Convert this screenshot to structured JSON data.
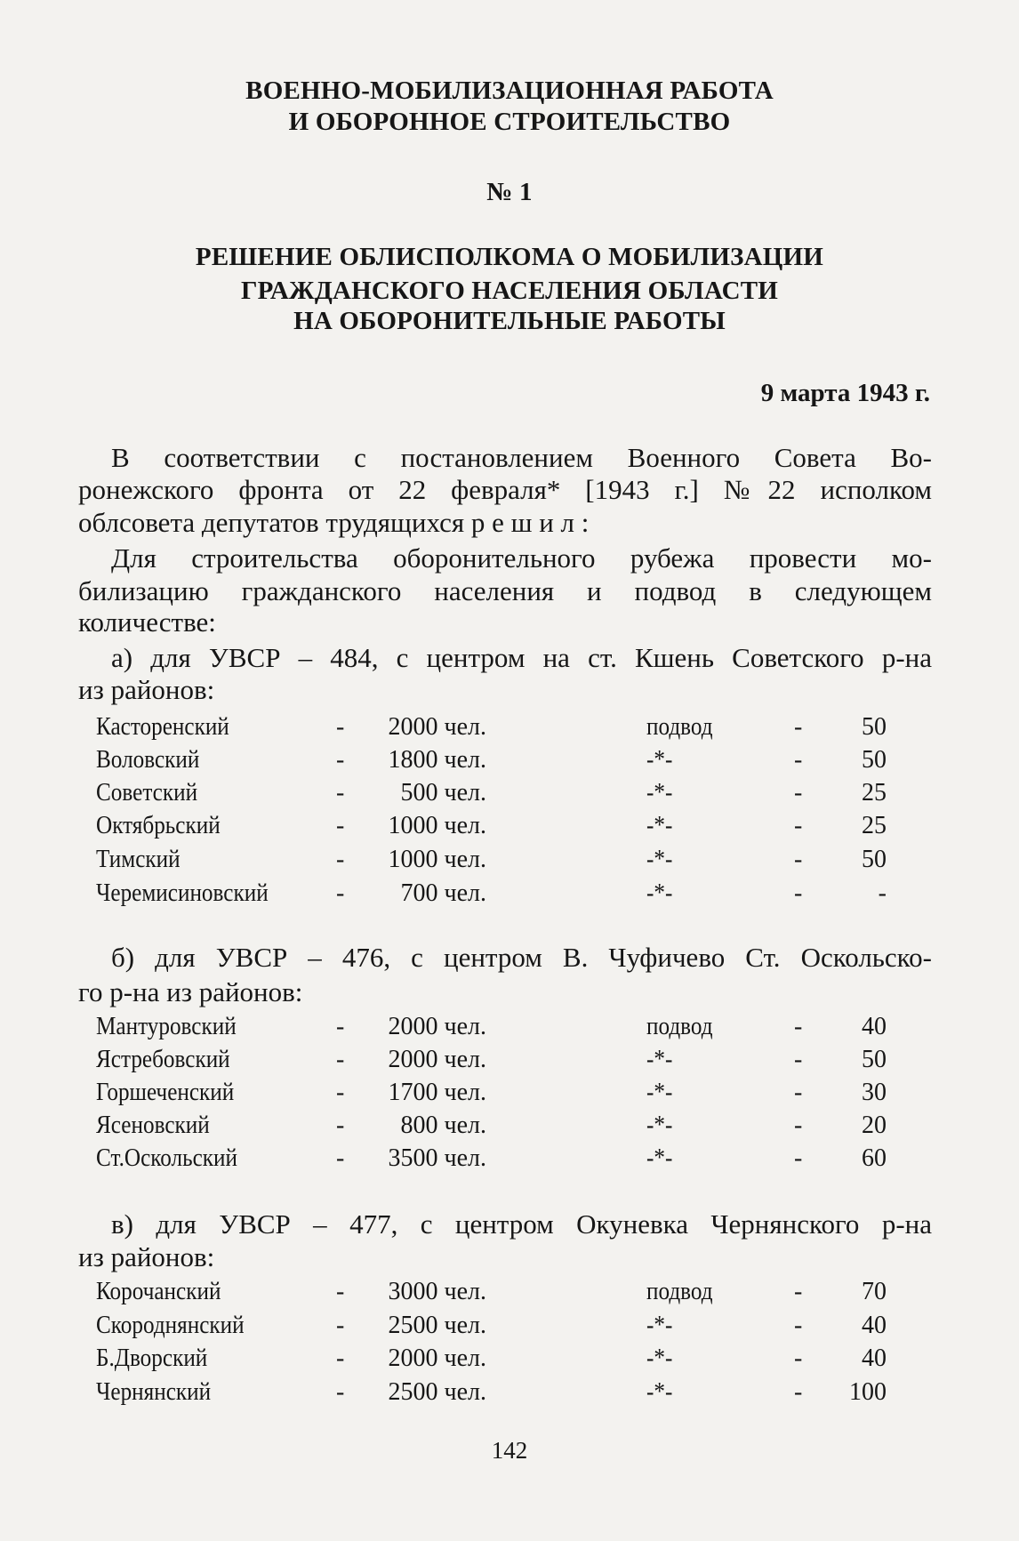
{
  "section_title": [
    "ВОЕННО-МОБИЛИЗАЦИОННАЯ РАБОТА",
    "И ОБОРОННОЕ СТРОИТЕЛЬСТВО"
  ],
  "doc_number": "№ 1",
  "doc_title": [
    "РЕШЕНИЕ ОБЛИСПОЛКОМА О МОБИЛИЗАЦИИ",
    "ГРАЖДАНСКОГО НАСЕЛЕНИЯ ОБЛАСТИ",
    "НА ОБОРОНИТЕЛЬНЫЕ РАБОТЫ"
  ],
  "date": "9 марта 1943 г.",
  "intro": [
    "В соответствии с постановлением Военного Совета Во-",
    "ронежского фронта от 22 февраля* [1943 г.] №22 исполком",
    "облсовета депутатов трудящихся р е ш и л :",
    "Для строительства оборонительного рубежа провести мо-",
    "билизацию гражданского населения и подвод в следующем",
    "количестве:"
  ],
  "sections": [
    {
      "heading": [
        "а) для УВСР – 484, с центром на ст. Кшень Советского р-на",
        "из районов:"
      ],
      "rows": [
        {
          "district": "Касторенский",
          "dash": "-",
          "people": "2000 чел.",
          "carts_label": "подвод",
          "dash2": "-",
          "carts": "50"
        },
        {
          "district": "Воловский",
          "dash": "-",
          "people": "1800 чел.",
          "carts_label": "-*-",
          "dash2": "-",
          "carts": "50"
        },
        {
          "district": "Советский",
          "dash": "-",
          "people": "500 чел.",
          "carts_label": "-*-",
          "dash2": "-",
          "carts": "25"
        },
        {
          "district": "Октябрьский",
          "dash": "-",
          "people": "1000 чел.",
          "carts_label": "-*-",
          "dash2": "-",
          "carts": "25"
        },
        {
          "district": "Тимский",
          "dash": "-",
          "people": "1000 чел.",
          "carts_label": "-*-",
          "dash2": "-",
          "carts": "50"
        },
        {
          "district": "Черемисиновский",
          "dash": "-",
          "people": "700 чел.",
          "carts_label": "-*-",
          "dash2": "-",
          "carts": "-"
        }
      ]
    },
    {
      "heading": [
        "б) для УВСР – 476, с центром В. Чуфичево Ст. Оскольско-",
        "го р-на из районов:"
      ],
      "rows": [
        {
          "district": "Мантуровский",
          "dash": "-",
          "people": "2000 чел.",
          "carts_label": "подвод",
          "dash2": "-",
          "carts": "40"
        },
        {
          "district": "Ястребовский",
          "dash": "-",
          "people": "2000 чел.",
          "carts_label": "-*-",
          "dash2": "-",
          "carts": "50"
        },
        {
          "district": "Горшеченский",
          "dash": "-",
          "people": "1700 чел.",
          "carts_label": "-*-",
          "dash2": "-",
          "carts": "30"
        },
        {
          "district": "Ясеновский",
          "dash": "-",
          "people": "800 чел.",
          "carts_label": "-*-",
          "dash2": "-",
          "carts": "20"
        },
        {
          "district": "Ст.Оскольский",
          "dash": "-",
          "people": "3500 чел.",
          "carts_label": "-*-",
          "dash2": "-",
          "carts": "60"
        }
      ]
    },
    {
      "heading": [
        "в) для УВСР – 477, с центром Окуневка Чернянского р-на",
        "из районов:"
      ],
      "rows": [
        {
          "district": "Корочанский",
          "dash": "-",
          "people": "3000 чел.",
          "carts_label": "подвод",
          "dash2": "-",
          "carts": "70"
        },
        {
          "district": "Скороднянский",
          "dash": "-",
          "people": "2500 чел.",
          "carts_label": "-*-",
          "dash2": "-",
          "carts": "40"
        },
        {
          "district": "Б.Дворский",
          "dash": "-",
          "people": "2000 чел.",
          "carts_label": "-*-",
          "dash2": "-",
          "carts": "40"
        },
        {
          "district": "Чернянский",
          "dash": "-",
          "people": "2500 чел.",
          "carts_label": "-*-",
          "dash2": "-",
          "carts": "100"
        }
      ]
    }
  ],
  "page_number": "142"
}
